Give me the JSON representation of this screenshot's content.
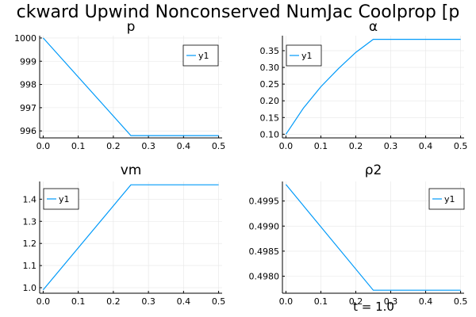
{
  "figure": {
    "suptitle": "ckward Upwind Nonconserved NumJac Coolprop [p",
    "footer": "t = 1.0"
  },
  "colors": {
    "series": "#009af9",
    "axis": "#000000",
    "grid": "#e6e6e6"
  },
  "chart_data": [
    {
      "type": "line",
      "title": "p",
      "x": [
        0,
        0.25,
        0.5
      ],
      "series": [
        {
          "name": "y1",
          "values": [
            1000.0,
            995.8,
            995.8
          ]
        }
      ],
      "xlim": [
        -0.01,
        0.51
      ],
      "ylim": [
        995.7,
        1000.1
      ],
      "xticks": [
        0,
        0.1,
        0.2,
        0.3,
        0.4,
        0.5
      ],
      "xtick_labels": [
        "0.0",
        "0.1",
        "0.2",
        "0.3",
        "0.4",
        "0.5"
      ],
      "yticks": [
        996,
        997,
        998,
        999,
        1000
      ],
      "ytick_labels": [
        "996",
        "997",
        "998",
        "999",
        "1000"
      ],
      "legend": "top-right",
      "grid": true
    },
    {
      "type": "line",
      "title": "α",
      "x": [
        0,
        0.05,
        0.1,
        0.15,
        0.2,
        0.25,
        0.5
      ],
      "series": [
        {
          "name": "y1",
          "values": [
            0.1,
            0.178,
            0.242,
            0.296,
            0.345,
            0.384,
            0.384
          ]
        }
      ],
      "xlim": [
        -0.01,
        0.51
      ],
      "ylim": [
        0.089,
        0.395
      ],
      "xticks": [
        0,
        0.1,
        0.2,
        0.3,
        0.4,
        0.5
      ],
      "xtick_labels": [
        "0.0",
        "0.1",
        "0.2",
        "0.3",
        "0.4",
        "0.5"
      ],
      "yticks": [
        0.1,
        0.15,
        0.2,
        0.25,
        0.3,
        0.35
      ],
      "ytick_labels": [
        "0.10",
        "0.15",
        "0.20",
        "0.25",
        "0.30",
        "0.35"
      ],
      "legend": "top-left",
      "grid": true
    },
    {
      "type": "line",
      "title": "vm",
      "x": [
        0,
        0.25,
        0.5
      ],
      "series": [
        {
          "name": "y1",
          "values": [
            0.99,
            1.465,
            1.465
          ]
        }
      ],
      "xlim": [
        -0.01,
        0.51
      ],
      "ylim": [
        0.975,
        1.48
      ],
      "xticks": [
        0,
        0.1,
        0.2,
        0.3,
        0.4,
        0.5
      ],
      "xtick_labels": [
        "0.0",
        "0.1",
        "0.2",
        "0.3",
        "0.4",
        "0.5"
      ],
      "yticks": [
        1.0,
        1.1,
        1.2,
        1.3,
        1.4
      ],
      "ytick_labels": [
        "1.0",
        "1.1",
        "1.2",
        "1.3",
        "1.4"
      ],
      "legend": "top-left",
      "grid": true
    },
    {
      "type": "line",
      "title": "ρ2",
      "x": [
        0,
        0.25,
        0.5
      ],
      "series": [
        {
          "name": "y1",
          "values": [
            0.49983,
            0.49772,
            0.49772
          ]
        }
      ],
      "xlim": [
        -0.01,
        0.51
      ],
      "ylim": [
        0.49766,
        0.49989
      ],
      "xticks": [
        0,
        0.1,
        0.2,
        0.3,
        0.4,
        0.5
      ],
      "xtick_labels": [
        "0.0",
        "0.1",
        "0.2",
        "0.3",
        "0.4",
        "0.5"
      ],
      "yticks": [
        0.498,
        0.4985,
        0.499,
        0.4995
      ],
      "ytick_labels": [
        "0.4980",
        "0.4985",
        "0.4990",
        "0.4995"
      ],
      "legend": "top-right",
      "grid": true
    }
  ]
}
